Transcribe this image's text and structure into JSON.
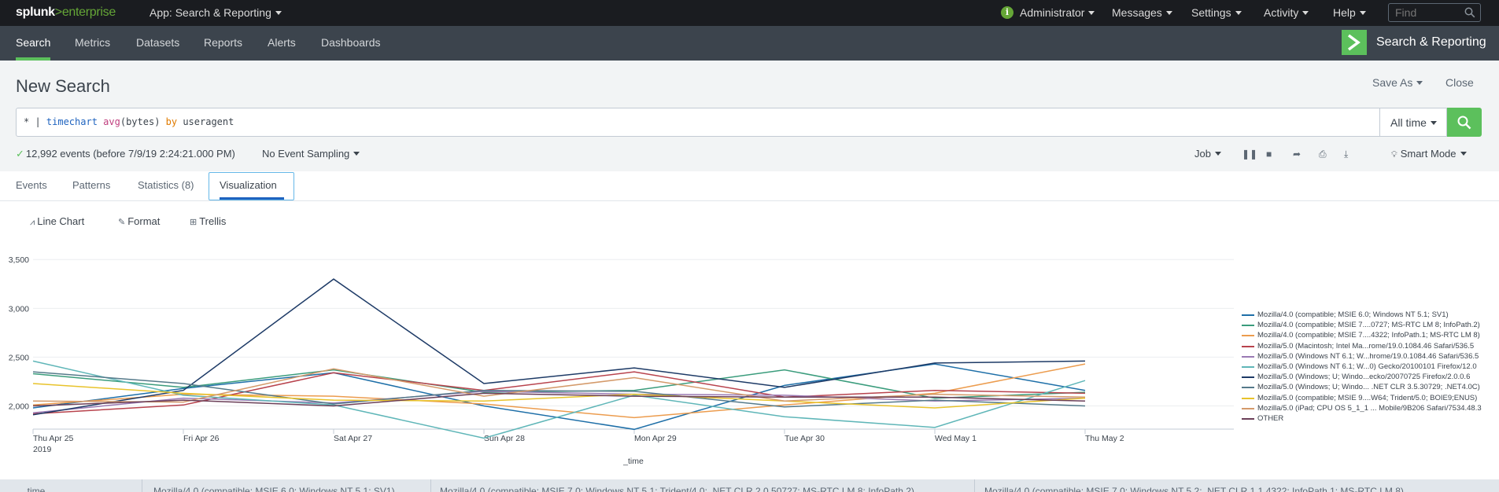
{
  "topbar": {
    "logo_left": "splunk",
    "logo_gt": ">",
    "logo_right": "enterprise",
    "app_label": "App: Search & Reporting",
    "nav": [
      "Administrator",
      "Messages",
      "Settings",
      "Activity",
      "Help"
    ],
    "find_placeholder": "Find",
    "info_glyph": "i"
  },
  "appbar": {
    "tabs": [
      "Search",
      "Metrics",
      "Datasets",
      "Reports",
      "Alerts",
      "Dashboards"
    ],
    "active_tab": "Search",
    "app_title": "Search & Reporting"
  },
  "search": {
    "page_title": "New Search",
    "save_as": "Save As",
    "close": "Close",
    "query_prefix": "* | ",
    "query_cmd": "timechart",
    "query_fn": "avg",
    "query_arg": "(bytes) ",
    "query_kw": "by",
    "query_field": " useragent",
    "time_range": "All time",
    "status": "12,992 events (before 7/9/19 2:24:21.000 PM)",
    "sampling": "No Event Sampling",
    "job": "Job",
    "mode": "Smart Mode"
  },
  "tabs": {
    "items": [
      "Events",
      "Patterns",
      "Statistics (8)",
      "Visualization"
    ],
    "active": "Visualization"
  },
  "vizbar": {
    "chart_type": "Line Chart",
    "format": "Format",
    "trellis": "Trellis"
  },
  "chart_data": {
    "type": "line",
    "x": [
      "Thu Apr 25",
      "Fri Apr 26",
      "Sat Apr 27",
      "Sun Apr 28",
      "Mon Apr 29",
      "Tue Apr 30",
      "Wed May 1",
      "Thu May 2"
    ],
    "x_year": "2019",
    "xlabel": "_time",
    "ylabel": "",
    "y_ticks": [
      2000,
      2500,
      3000,
      3500
    ],
    "y_tick_labels": [
      "2,000",
      "2,500",
      "3,000",
      "3,500"
    ],
    "ylim": [
      1650,
      3550
    ],
    "grid": true,
    "legend": "right",
    "series": [
      {
        "name": "Mozilla/4.0 (compatible; MSIE 6.0; Windows NT 5.1; SV1)",
        "color": "#1e6fa8",
        "values": [
          1980,
          2180,
          2340,
          2000,
          1760,
          2210,
          2430,
          2160
        ]
      },
      {
        "name": "Mozilla/4.0 (compatible; MSIE 7....0727; MS-RTC LM 8; InfoPath.2)",
        "color": "#3a9c7c",
        "values": [
          2330,
          2190,
          2370,
          2140,
          2160,
          2370,
          2080,
          2140
        ]
      },
      {
        "name": "Mozilla/4.0 (compatible; MSIE 7....4322; InfoPath.1; MS-RTC LM 8)",
        "color": "#ec9c4e",
        "values": [
          2010,
          2120,
          2100,
          2020,
          1880,
          2010,
          2130,
          2430
        ]
      },
      {
        "name": "Mozilla/5.0 (Macintosh; Intel Ma...rome/19.0.1084.46 Safari/536.5",
        "color": "#b8434d",
        "values": [
          1920,
          2010,
          2340,
          2160,
          2350,
          2090,
          2160,
          2130
        ]
      },
      {
        "name": "Mozilla/5.0 (Windows NT 6.1; W...hrome/19.0.1084.46 Safari/536.5",
        "color": "#9a7ab4",
        "values": [
          1930,
          2080,
          2030,
          2150,
          2120,
          2110,
          2050,
          2080
        ]
      },
      {
        "name": "Mozilla/5.0 (Windows NT 6.1; W...0) Gecko/20100101 Firefox/12.0",
        "color": "#5fb6b8",
        "values": [
          2460,
          2110,
          2010,
          1670,
          2110,
          1890,
          1780,
          2260
        ]
      },
      {
        "name": "Mozilla/5.0 (Windows; U; Windo...ecko/20070725 Firefox/2.0.0.6",
        "color": "#1d3a66",
        "values": [
          1910,
          2160,
          3300,
          2230,
          2390,
          2190,
          2440,
          2460
        ]
      },
      {
        "name": "Mozilla/5.0 (Windows; U; Windo... .NET CLR 3.5.30729; .NET4.0C)",
        "color": "#557a8a",
        "values": [
          2350,
          2230,
          2020,
          2160,
          2150,
          1990,
          2060,
          2000
        ]
      },
      {
        "name": "Mozilla/5.0 (compatible; MSIE 9....W64; Trident/5.0; BOIE9;ENUS)",
        "color": "#e8c32b",
        "values": [
          2230,
          2130,
          2060,
          2050,
          2120,
          2050,
          1980,
          2080
        ]
      },
      {
        "name": "Mozilla/5.0 (iPad; CPU OS 5_1_1 ... Mobile/9B206 Safari/7534.48.3",
        "color": "#d49a6a",
        "values": [
          2050,
          2040,
          2380,
          2100,
          2290,
          2050,
          2120,
          2090
        ]
      },
      {
        "name": "OTHER",
        "color": "#6b3f58",
        "values": [
          2000,
          2060,
          2000,
          2130,
          2100,
          2090,
          2090,
          2050
        ]
      }
    ]
  },
  "table": {
    "headers": [
      "_time",
      "Mozilla/4.0 (compatible; MSIE 6.0; Windows NT 5.1; SV1)",
      "Mozilla/4.0 (compatible; MSIE 7.0; Windows NT 5.1; Trident/4.0; .NET CLR 2.0.50727; MS-RTC LM 8; InfoPath.2)",
      "Mozilla/4.0 (compatible; MSIE 7.0; Windows NT 5.2; .NET CLR 1.1.4322; InfoPath.1; MS-RTC LM 8)"
    ]
  },
  "colors": {
    "accent": "#5cc05c",
    "topbar": "#1a1c20",
    "appbar": "#3c444d"
  }
}
